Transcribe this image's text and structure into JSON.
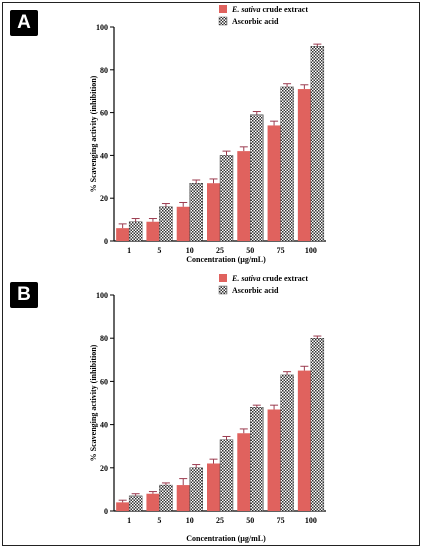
{
  "chart_data": [
    {
      "panel": "A",
      "type": "bar",
      "categories": [
        "1",
        "5",
        "10",
        "25",
        "50",
        "75",
        "100"
      ],
      "series": [
        {
          "name": "E. sativa crude extract",
          "name_italic": "E. sativa",
          "name_rest": " crude extract",
          "values": [
            6,
            9,
            16,
            27,
            42,
            54,
            71
          ],
          "errors": [
            2,
            1.5,
            2,
            2,
            2,
            2,
            2
          ],
          "color": "#e0625e",
          "pattern": "solid"
        },
        {
          "name": "Ascorbic acid",
          "values": [
            9,
            16,
            27,
            40,
            59,
            72,
            91
          ],
          "errors": [
            1.5,
            1.5,
            1.5,
            2,
            1.5,
            1.5,
            1
          ],
          "color": "#555555",
          "pattern": "checker"
        }
      ],
      "xlabel": "Concentration (µg/mL)",
      "ylabel": "% Scavenging activity (inhibition)",
      "ylim": [
        0,
        100
      ],
      "yticks": [
        0,
        20,
        40,
        60,
        80,
        100
      ],
      "legend_position": "top-right",
      "grid": false
    },
    {
      "panel": "B",
      "type": "bar",
      "categories": [
        "1",
        "5",
        "10",
        "25",
        "50",
        "75",
        "100"
      ],
      "series": [
        {
          "name": "E. sativa crude extract",
          "name_italic": "E. sativa",
          "name_rest": " crude extract",
          "values": [
            4,
            8,
            12,
            22,
            36,
            47,
            65
          ],
          "errors": [
            1,
            1,
            3,
            2,
            2,
            2,
            2
          ],
          "color": "#e0625e",
          "pattern": "solid"
        },
        {
          "name": "Ascorbic acid",
          "values": [
            7,
            12,
            20,
            33,
            48,
            63,
            80
          ],
          "errors": [
            1,
            1,
            1.5,
            1.5,
            1,
            1.5,
            1
          ],
          "color": "#555555",
          "pattern": "checker"
        }
      ],
      "xlabel": "Concentration (µg/mL)",
      "ylabel": "% Scavenging activity (inhibition)",
      "ylim": [
        0,
        100
      ],
      "yticks": [
        0,
        20,
        40,
        60,
        80,
        100
      ],
      "legend_position": "top-right",
      "grid": false
    }
  ],
  "colors": {
    "error_bar": "#9b3b4f",
    "axis": "#000000"
  }
}
